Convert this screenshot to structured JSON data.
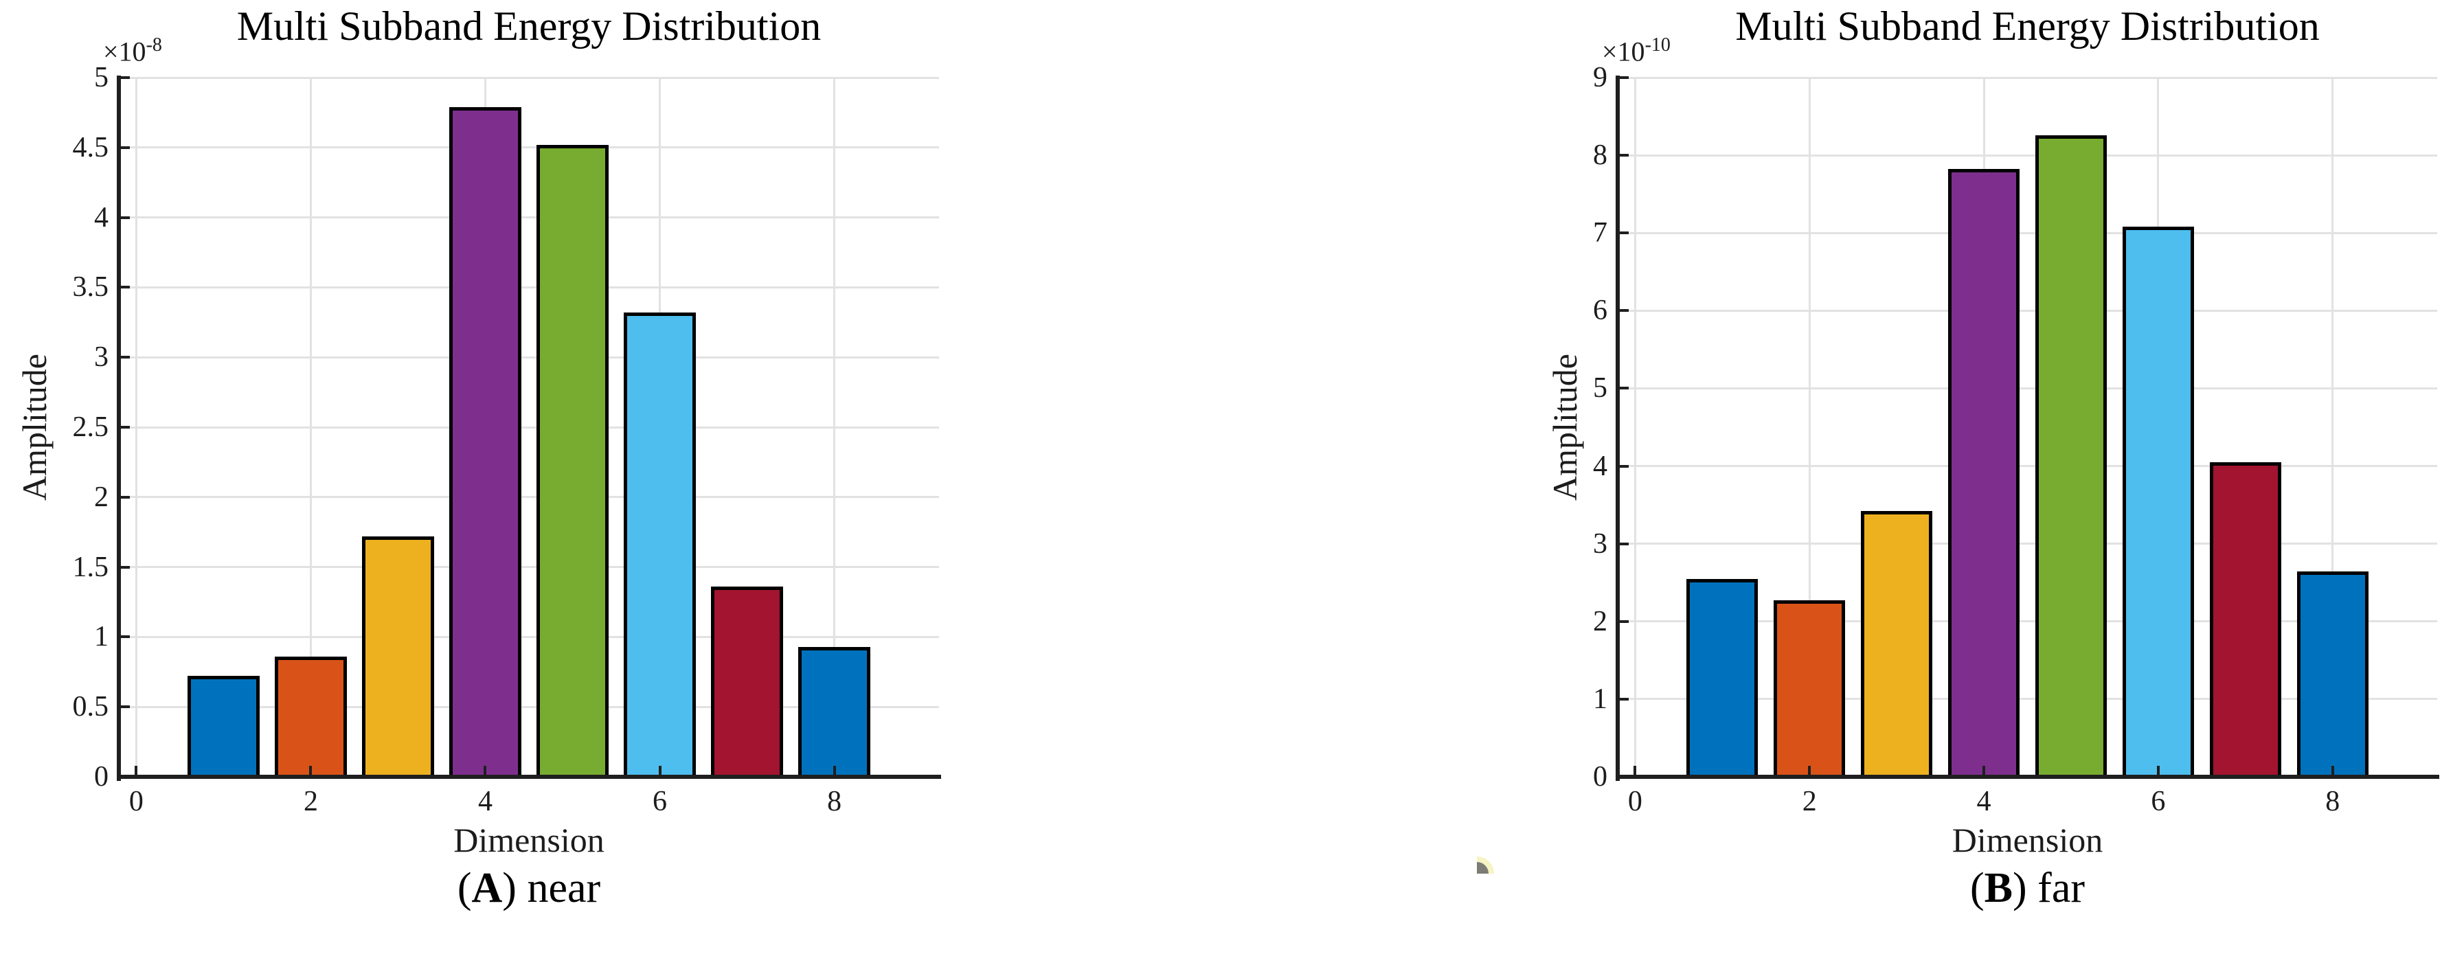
{
  "figure": {
    "background": "#ffffff",
    "axis_color": "#1f1f1f",
    "grid_color": "#e2e2e2",
    "captions": [
      {
        "open": "(",
        "letter": "A",
        "close": ")",
        "text": "near"
      },
      {
        "open": "(",
        "letter": "B",
        "close": ")",
        "text": "far"
      }
    ],
    "cursor_artifact": {
      "fill": "#7d7d76",
      "edge": "#f6f3c4"
    }
  },
  "chart_data": [
    {
      "type": "bar",
      "title": "Multi Subband Energy Distribution",
      "xlabel": "Dimension",
      "ylabel": "Amplitude",
      "exponent_base": "×10",
      "exponent_power": "-8",
      "x": [
        1,
        2,
        3,
        4,
        5,
        6,
        7,
        8
      ],
      "values": [
        0.72,
        0.86,
        1.72,
        4.79,
        4.52,
        3.32,
        1.36,
        0.93
      ],
      "bar_colors": [
        "#0072BD",
        "#D95319",
        "#EDB120",
        "#7E2F8E",
        "#77AC30",
        "#4DBEEE",
        "#A2142F",
        "#0072BD"
      ],
      "bar_edge_color": "#000000",
      "bar_width": 0.82,
      "xlim": [
        -0.2,
        9.2
      ],
      "ylim": [
        0,
        5
      ],
      "yticks": [
        0,
        0.5,
        1,
        1.5,
        2,
        2.5,
        3,
        3.5,
        4,
        4.5,
        5
      ],
      "ytick_labels": [
        "0",
        "0.5",
        "1",
        "1.5",
        "2",
        "2.5",
        "3",
        "3.5",
        "4",
        "4.5",
        "5"
      ],
      "xticks": [
        0,
        2,
        4,
        6,
        8
      ],
      "xtick_labels": [
        "0",
        "2",
        "4",
        "6",
        "8"
      ],
      "grid": true,
      "legend": null
    },
    {
      "type": "bar",
      "title": "Multi Subband Energy Distribution",
      "xlabel": "Dimension",
      "ylabel": "Amplitude",
      "exponent_base": "×10",
      "exponent_power": "-10",
      "x": [
        1,
        2,
        3,
        4,
        5,
        6,
        7,
        8
      ],
      "values": [
        2.55,
        2.27,
        3.42,
        7.82,
        8.26,
        7.08,
        4.05,
        2.64
      ],
      "bar_colors": [
        "#0072BD",
        "#D95319",
        "#EDB120",
        "#7E2F8E",
        "#77AC30",
        "#4DBEEE",
        "#A2142F",
        "#0072BD"
      ],
      "bar_edge_color": "#000000",
      "bar_width": 0.82,
      "xlim": [
        -0.2,
        9.2
      ],
      "ylim": [
        0,
        9
      ],
      "yticks": [
        0,
        1,
        2,
        3,
        4,
        5,
        6,
        7,
        8,
        9
      ],
      "ytick_labels": [
        "0",
        "1",
        "2",
        "3",
        "4",
        "5",
        "6",
        "7",
        "8",
        "9"
      ],
      "xticks": [
        0,
        2,
        4,
        6,
        8
      ],
      "xtick_labels": [
        "0",
        "2",
        "4",
        "6",
        "8"
      ],
      "grid": true,
      "legend": null
    }
  ]
}
